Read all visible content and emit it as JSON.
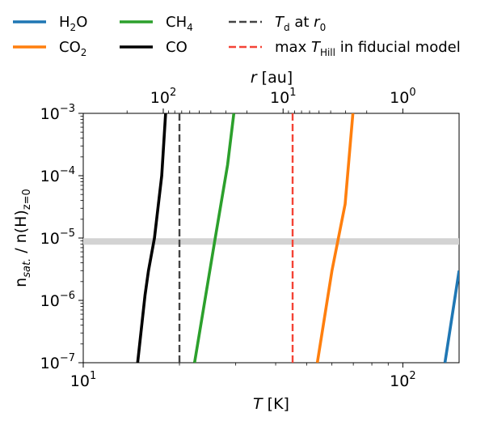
{
  "chart_data": {
    "type": "line",
    "xlabel_italic": "T",
    "xlabel_rest": " [K]",
    "ylabel_main": "n",
    "ylabel_sub": "sat.",
    "ylabel_mid": " / n(H)",
    "ylabel_sub2": "z=0",
    "top_axis_label_italic": "r",
    "top_axis_label_rest": " [au]",
    "xscale": "log",
    "yscale": "log",
    "xlim": [
      10,
      150
    ],
    "ylim": [
      1e-07,
      0.001
    ],
    "x_ticks": [
      {
        "value": 10,
        "base": "10",
        "exp": "1"
      },
      {
        "value": 100,
        "base": "10",
        "exp": "2"
      }
    ],
    "y_ticks": [
      {
        "value": 0.001,
        "base": "10",
        "exp": "−3"
      },
      {
        "value": 0.0001,
        "base": "10",
        "exp": "−4"
      },
      {
        "value": 1e-05,
        "base": "10",
        "exp": "−5"
      },
      {
        "value": 1e-06,
        "base": "10",
        "exp": "−6"
      },
      {
        "value": 1e-07,
        "base": "10",
        "exp": "−7"
      }
    ],
    "top_ticks": [
      {
        "value": 100,
        "base": "10",
        "exp": "2",
        "T": 17.8
      },
      {
        "value": 10,
        "base": "10",
        "exp": "1",
        "T": 42.2
      },
      {
        "value": 1,
        "base": "10",
        "exp": "0",
        "T": 100
      }
    ],
    "top_axis_T_per_r_factor": 100,
    "top_axis_exponent": -0.375,
    "reference_band": {
      "y": 8.8e-06,
      "color": "#d3d3d3"
    },
    "vlines": [
      {
        "name": "Td at r0",
        "x": 20.0,
        "color": "#444444",
        "label_italic": "T",
        "label_sub": "d",
        "label_mid": " at ",
        "label_italic2": "r",
        "label_sub2": "0"
      },
      {
        "name": "max THill in fiducial model",
        "x": 45.2,
        "color": "#f44336",
        "label_pre": "max ",
        "label_italic": "T",
        "label_sub": "Hill",
        "label_post": " in fiducial model"
      }
    ],
    "series": [
      {
        "name": "H2O",
        "label_main": "H",
        "label_sub": "2",
        "label_post": "O",
        "color": "#1f77b4",
        "points": [
          [
            135.5,
            1e-07
          ],
          [
            150,
            3e-06
          ]
        ]
      },
      {
        "name": "CO2",
        "label_main": "CO",
        "label_sub": "2",
        "label_post": "",
        "color": "#ff7f0e",
        "points": [
          [
            54.0,
            1e-07
          ],
          [
            60.0,
            3e-06
          ],
          [
            66.0,
            3.5e-05
          ],
          [
            69.8,
            0.001
          ]
        ]
      },
      {
        "name": "CH4",
        "label_main": "CH",
        "label_sub": "4",
        "label_post": "",
        "color": "#2ca02c",
        "points": [
          [
            22.3,
            1e-07
          ],
          [
            25.8,
            9e-06
          ],
          [
            28.3,
            0.00015
          ],
          [
            29.6,
            0.001
          ]
        ]
      },
      {
        "name": "CO",
        "label_main": "CO",
        "label_sub": "",
        "label_post": "",
        "color": "#000000",
        "points": [
          [
            14.8,
            1e-07
          ],
          [
            15.6,
            1.2e-06
          ],
          [
            16.0,
            3e-06
          ],
          [
            16.7,
            1e-05
          ],
          [
            17.6,
            0.0001
          ],
          [
            18.1,
            0.001
          ]
        ]
      }
    ]
  }
}
